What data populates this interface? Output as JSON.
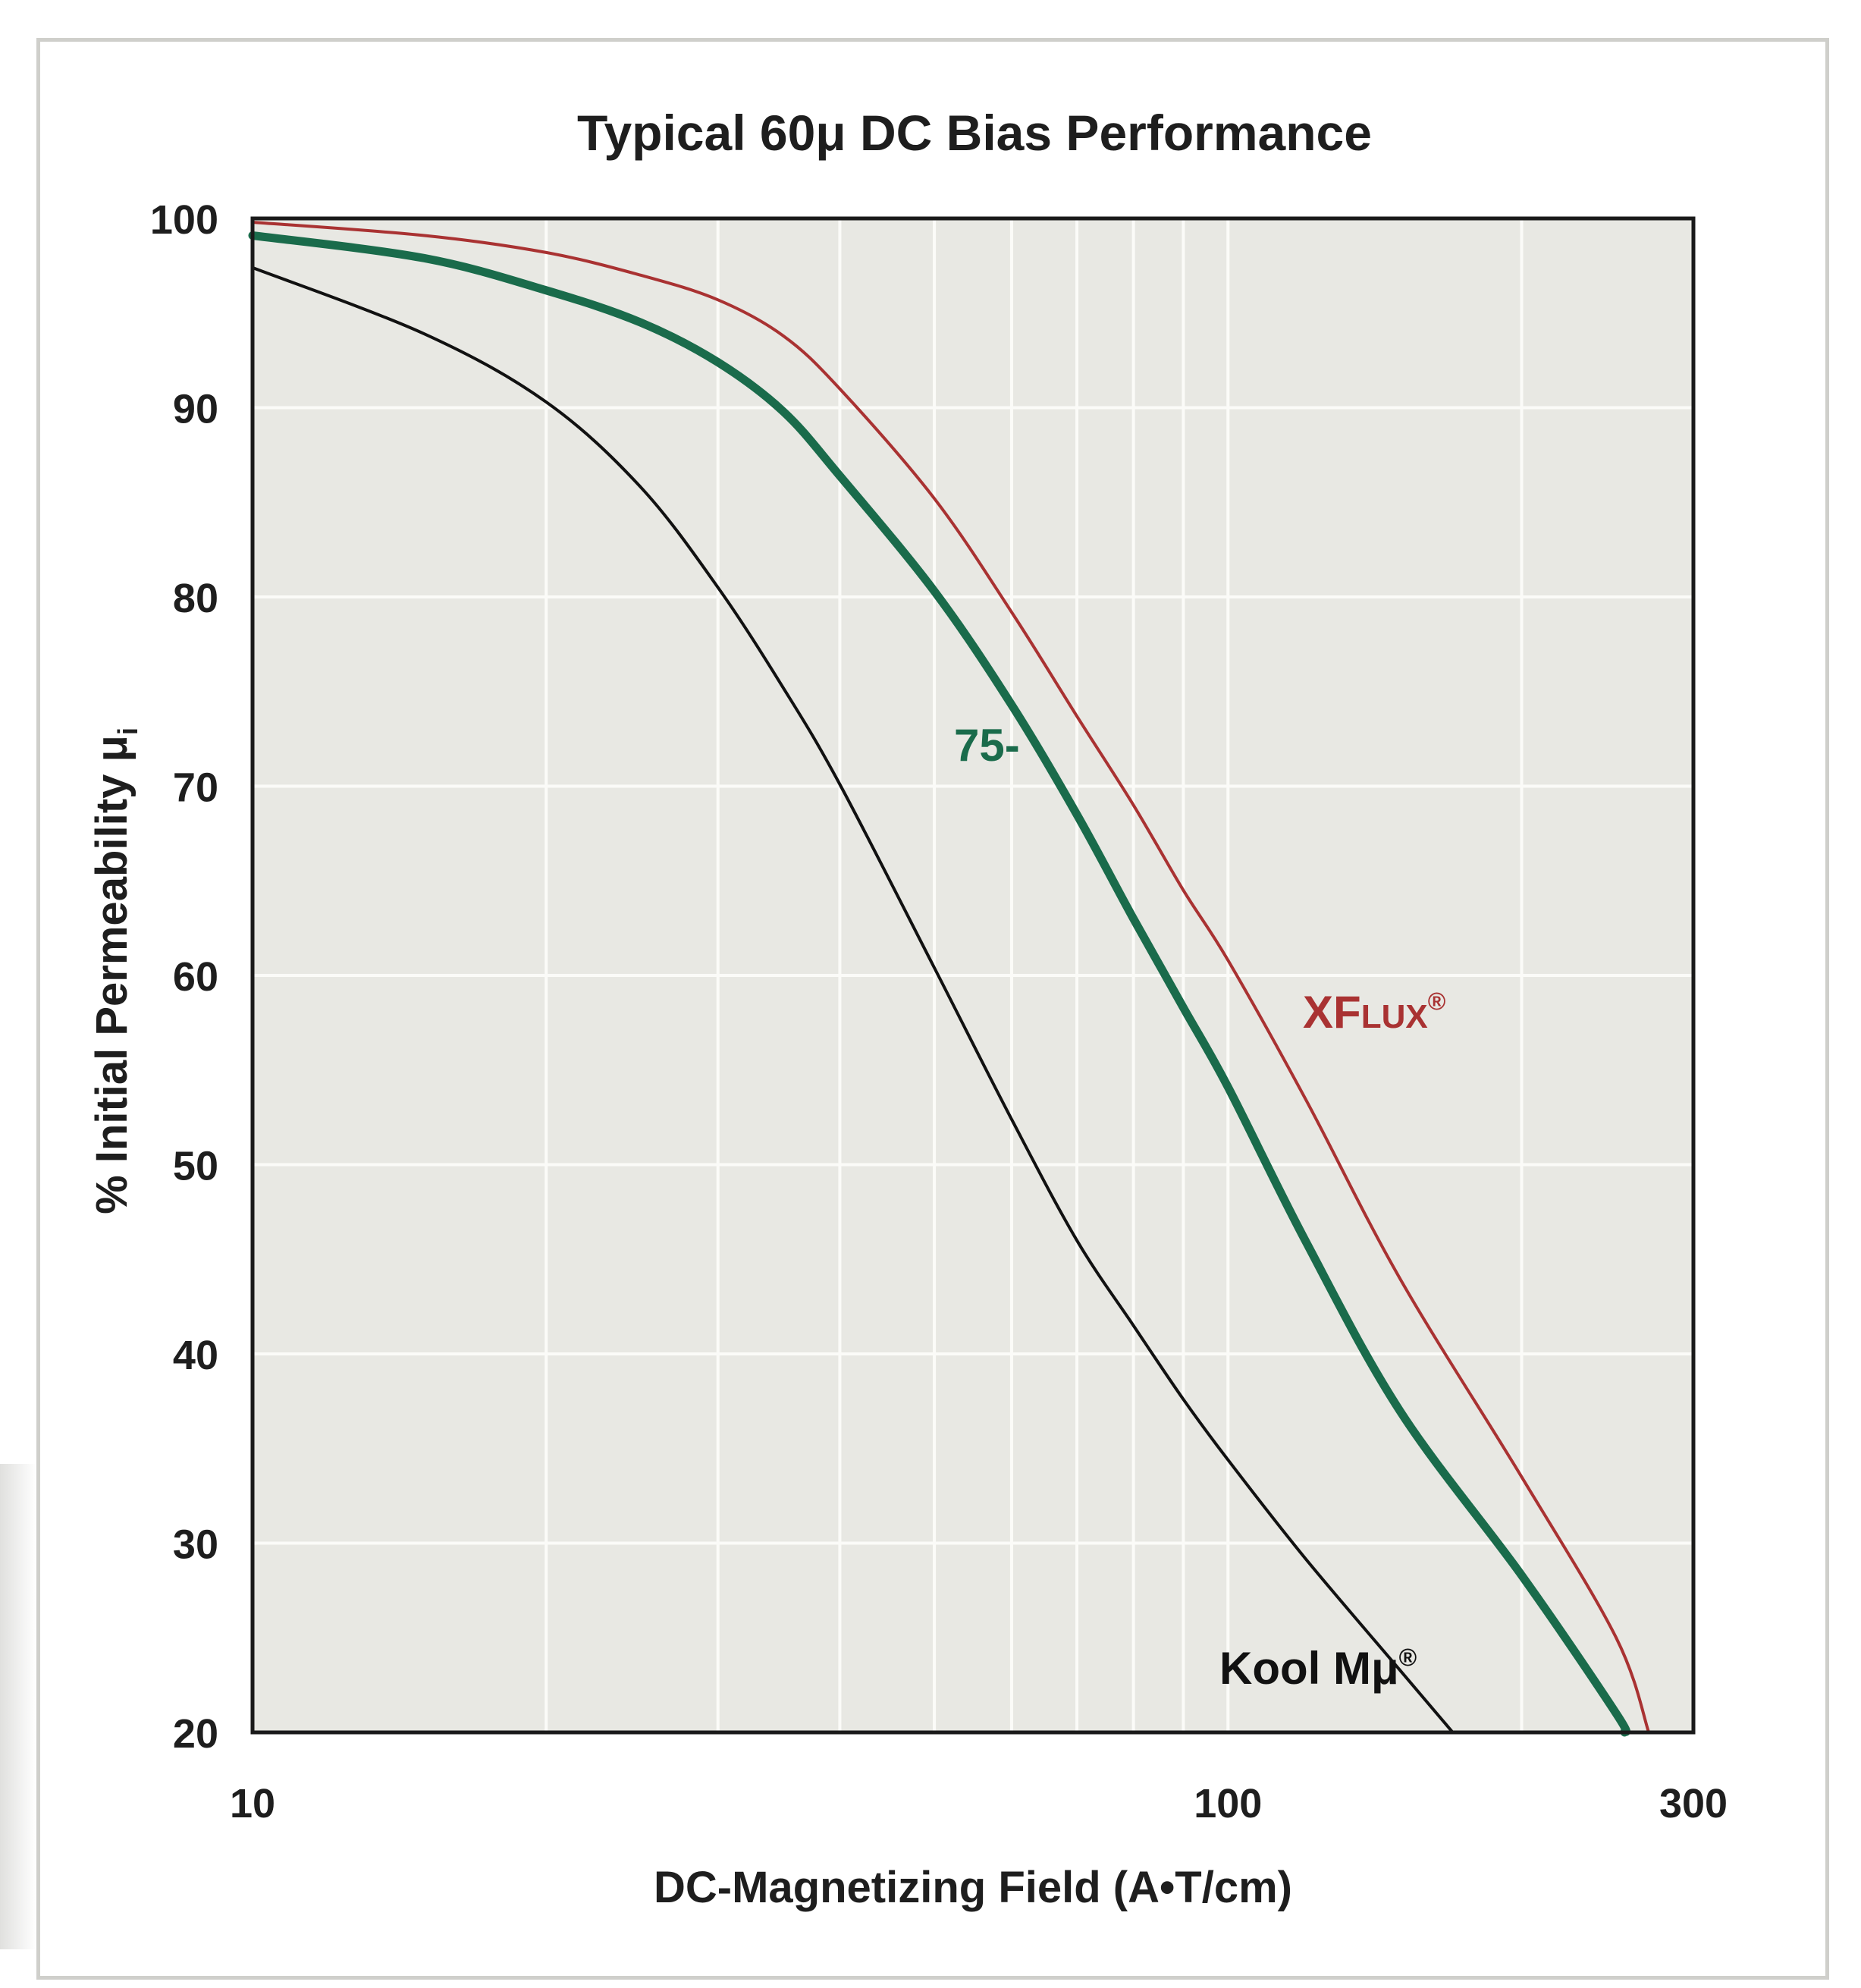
{
  "chart_data": {
    "type": "line",
    "title": "Typical 60μ DC Bias Performance",
    "xlabel": "DC-Magnetizing Field (A•T/cm)",
    "ylabel": "% Initial Permeability μ",
    "ylabel_subscript": "i",
    "x_scale": "log",
    "xlim": [
      10,
      300
    ],
    "ylim": [
      20,
      100
    ],
    "x_ticks": [
      10,
      100,
      300
    ],
    "y_ticks": [
      20,
      30,
      40,
      50,
      60,
      70,
      80,
      90,
      100
    ],
    "grid": true,
    "colors": {
      "plot_bg": "#e8e8e3",
      "grid": "#fbfbf8",
      "frame": "#1a1a1a"
    },
    "series": [
      {
        "name": "XFLUX®",
        "label_parts": [
          "X",
          "F",
          "LUX",
          "®"
        ],
        "color": "#a93232",
        "x": [
          10,
          15,
          20,
          25,
          30,
          35,
          40,
          50,
          60,
          70,
          80,
          90,
          100,
          120,
          150,
          200,
          250,
          270
        ],
        "y": [
          99.8,
          99.1,
          98.2,
          97.0,
          95.7,
          93.8,
          91.0,
          85.2,
          79.2,
          73.7,
          69.0,
          64.5,
          60.8,
          53.5,
          44.0,
          33.5,
          25.0,
          20.0
        ]
      },
      {
        "name": "75-",
        "color": "#1a6b4b",
        "x": [
          10,
          15,
          20,
          25,
          30,
          35,
          40,
          50,
          60,
          70,
          80,
          90,
          100,
          120,
          150,
          200,
          250,
          255
        ],
        "y": [
          99.1,
          97.9,
          96.2,
          94.5,
          92.4,
          89.8,
          86.4,
          80.3,
          74.3,
          68.5,
          63.0,
          58.3,
          54.1,
          46.0,
          37.0,
          28.3,
          21.0,
          20.0
        ]
      },
      {
        "name": "Kool Mμ®",
        "color": "#111111",
        "x": [
          10,
          15,
          20,
          25,
          30,
          35,
          40,
          50,
          60,
          70,
          80,
          90,
          100,
          120,
          150,
          170
        ],
        "y": [
          97.4,
          93.9,
          90.3,
          85.8,
          80.5,
          75.2,
          70.1,
          60.4,
          52.4,
          46.0,
          41.5,
          37.6,
          34.4,
          29.2,
          23.3,
          20.0
        ]
      }
    ]
  }
}
